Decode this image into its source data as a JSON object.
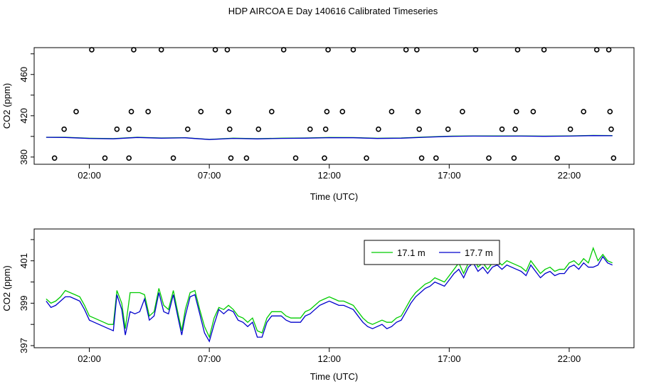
{
  "title": "HDP AIRCOA E  Day 140616  Calibrated Timeseries",
  "colors": {
    "green": "#00cc00",
    "blue": "#0000cc",
    "black": "#000000"
  },
  "chart_data": [
    {
      "type": "scatter",
      "title": "HDP AIRCOA E  Day 140616  Calibrated Timeseries",
      "xlabel": "Time (UTC)",
      "ylabel": "CO2 (ppm)",
      "xlim": [
        -0.3,
        24.7
      ],
      "ylim": [
        373,
        486
      ],
      "x_ticks": [
        2,
        7,
        12,
        17,
        22
      ],
      "x_tick_labels": [
        "02:00",
        "07:00",
        "12:00",
        "17:00",
        "22:00"
      ],
      "y_ticks": [
        380,
        420,
        460
      ],
      "y_tick_labels": [
        "380",
        "420",
        "460"
      ],
      "y_minor_ticks": [
        380,
        400,
        420,
        440,
        460,
        480
      ],
      "series": [
        {
          "marker": "circle",
          "color": "#000000",
          "points": [
            [
              0.55,
              379
            ],
            [
              0.95,
              407
            ],
            [
              1.45,
              424
            ],
            [
              2.1,
              484
            ],
            [
              2.65,
              379
            ],
            [
              3.15,
              407
            ],
            [
              3.65,
              379
            ],
            [
              3.65,
              407
            ],
            [
              3.75,
              424
            ],
            [
              3.85,
              484
            ],
            [
              4.45,
              424
            ],
            [
              5.0,
              484
            ],
            [
              5.5,
              379
            ],
            [
              6.1,
              407
            ],
            [
              6.65,
              424
            ],
            [
              7.25,
              484
            ],
            [
              7.75,
              484
            ],
            [
              7.8,
              424
            ],
            [
              7.85,
              407
            ],
            [
              7.9,
              379
            ],
            [
              8.55,
              379
            ],
            [
              9.05,
              407
            ],
            [
              9.6,
              424
            ],
            [
              10.1,
              484
            ],
            [
              10.6,
              379
            ],
            [
              11.2,
              407
            ],
            [
              11.8,
              379
            ],
            [
              11.85,
              407
            ],
            [
              11.9,
              424
            ],
            [
              11.95,
              484
            ],
            [
              12.55,
              424
            ],
            [
              13.0,
              484
            ],
            [
              13.55,
              379
            ],
            [
              14.05,
              407
            ],
            [
              14.6,
              424
            ],
            [
              15.2,
              484
            ],
            [
              15.65,
              484
            ],
            [
              15.7,
              424
            ],
            [
              15.75,
              407
            ],
            [
              15.85,
              379
            ],
            [
              16.45,
              379
            ],
            [
              16.95,
              407
            ],
            [
              17.55,
              424
            ],
            [
              18.1,
              484
            ],
            [
              18.65,
              379
            ],
            [
              19.2,
              407
            ],
            [
              19.7,
              379
            ],
            [
              19.75,
              407
            ],
            [
              19.8,
              424
            ],
            [
              19.85,
              484
            ],
            [
              20.5,
              424
            ],
            [
              20.95,
              484
            ],
            [
              21.5,
              379
            ],
            [
              22.05,
              407
            ],
            [
              22.6,
              424
            ],
            [
              23.15,
              484
            ],
            [
              23.65,
              484
            ],
            [
              23.7,
              424
            ],
            [
              23.75,
              407
            ],
            [
              23.85,
              379
            ]
          ]
        },
        {
          "name": "17.1 m",
          "color": "#00cc00",
          "x": [
            0.2,
            1,
            2,
            3,
            4,
            5,
            6,
            7,
            8,
            9,
            10,
            11,
            12,
            13,
            14,
            15,
            16,
            17,
            18,
            19,
            20,
            21,
            22,
            23,
            23.8
          ],
          "y": [
            399.2,
            399.2,
            398.2,
            397.9,
            399.2,
            398.5,
            398.8,
            397.1,
            398.3,
            397.8,
            398.3,
            398.5,
            399.0,
            398.9,
            398.2,
            398.5,
            399.4,
            400.2,
            400.5,
            400.4,
            400.5,
            400.3,
            400.5,
            401.0,
            400.8
          ]
        },
        {
          "name": "17.7 m",
          "color": "#0000cc",
          "x": [
            0.2,
            1,
            2,
            3,
            4,
            5,
            6,
            7,
            8,
            9,
            10,
            11,
            12,
            13,
            14,
            15,
            16,
            17,
            18,
            19,
            20,
            21,
            22,
            23,
            23.8
          ],
          "y": [
            399.1,
            399.0,
            398.0,
            397.7,
            399.0,
            398.3,
            398.6,
            397.0,
            398.1,
            397.6,
            398.1,
            398.3,
            398.8,
            398.7,
            398.0,
            398.3,
            399.2,
            400.0,
            400.3,
            400.2,
            400.3,
            400.1,
            400.3,
            400.8,
            400.6
          ]
        }
      ]
    },
    {
      "type": "line",
      "xlabel": "Time (UTC)",
      "ylabel": "CO2 (ppm)",
      "xlim": [
        -0.3,
        24.7
      ],
      "ylim": [
        396.9,
        402.5
      ],
      "x_ticks": [
        2,
        7,
        12,
        17,
        22
      ],
      "x_tick_labels": [
        "02:00",
        "07:00",
        "12:00",
        "17:00",
        "22:00"
      ],
      "y_ticks": [
        397,
        399,
        401
      ],
      "y_tick_labels": [
        "397",
        "399",
        "401"
      ],
      "y_minor_ticks": [
        397,
        398,
        399,
        400,
        401,
        402
      ],
      "legend": {
        "placement": "top-right",
        "entries": [
          "17.1 m",
          "17.7 m"
        ]
      },
      "series": [
        {
          "name": "17.1 m",
          "color": "#00cc00",
          "x": [
            0.2,
            0.4,
            0.6,
            0.8,
            1.0,
            1.2,
            1.4,
            1.6,
            1.8,
            2.0,
            2.2,
            2.4,
            2.6,
            2.8,
            3.0,
            3.15,
            3.35,
            3.5,
            3.7,
            3.9,
            4.1,
            4.3,
            4.5,
            4.7,
            4.9,
            5.1,
            5.3,
            5.5,
            5.7,
            5.85,
            6.0,
            6.2,
            6.4,
            6.6,
            6.8,
            7.0,
            7.2,
            7.4,
            7.6,
            7.8,
            8.0,
            8.2,
            8.4,
            8.6,
            8.8,
            9.0,
            9.2,
            9.4,
            9.6,
            9.8,
            10.0,
            10.2,
            10.4,
            10.6,
            10.8,
            11.0,
            11.2,
            11.4,
            11.6,
            11.8,
            12.0,
            12.2,
            12.4,
            12.6,
            12.8,
            13.0,
            13.2,
            13.4,
            13.6,
            13.8,
            14.0,
            14.2,
            14.4,
            14.6,
            14.8,
            15.0,
            15.2,
            15.4,
            15.6,
            15.8,
            16.0,
            16.2,
            16.4,
            16.6,
            16.8,
            17.0,
            17.2,
            17.4,
            17.6,
            17.8,
            18.0,
            18.2,
            18.4,
            18.6,
            18.8,
            19.0,
            19.2,
            19.4,
            19.6,
            19.8,
            20.0,
            20.2,
            20.4,
            20.6,
            20.8,
            21.0,
            21.2,
            21.4,
            21.6,
            21.8,
            22.0,
            22.2,
            22.4,
            22.6,
            22.8,
            23.0,
            23.2,
            23.4,
            23.6,
            23.8
          ],
          "y": [
            399.2,
            399.0,
            399.1,
            399.3,
            399.6,
            399.5,
            399.4,
            399.3,
            398.9,
            398.4,
            398.3,
            398.2,
            398.1,
            398.0,
            398.0,
            399.6,
            399.0,
            397.8,
            399.5,
            399.5,
            399.5,
            399.4,
            398.4,
            398.6,
            399.7,
            398.9,
            398.7,
            399.6,
            398.5,
            397.7,
            398.7,
            399.5,
            399.6,
            398.7,
            397.9,
            397.4,
            398.3,
            398.8,
            398.7,
            398.9,
            398.7,
            398.4,
            398.3,
            398.1,
            398.3,
            397.7,
            397.6,
            398.3,
            398.6,
            398.6,
            398.6,
            398.4,
            398.3,
            398.3,
            398.3,
            398.6,
            398.7,
            398.9,
            399.1,
            399.2,
            399.3,
            399.2,
            399.1,
            399.1,
            399.0,
            398.9,
            398.6,
            398.3,
            398.1,
            398.0,
            398.1,
            398.2,
            398.1,
            398.1,
            398.3,
            398.4,
            398.8,
            399.2,
            399.5,
            399.7,
            399.9,
            400.0,
            400.2,
            400.1,
            400.0,
            400.3,
            400.6,
            400.9,
            400.4,
            400.9,
            401.2,
            400.7,
            400.9,
            400.6,
            400.9,
            401.0,
            400.8,
            401.0,
            400.9,
            400.8,
            400.7,
            400.5,
            401.0,
            400.7,
            400.4,
            400.6,
            400.7,
            400.5,
            400.6,
            400.6,
            400.9,
            401.0,
            400.8,
            401.1,
            400.9,
            401.6,
            401.0,
            401.3,
            401.0,
            400.9
          ]
        },
        {
          "name": "17.7 m",
          "color": "#0000cc",
          "x": [
            0.2,
            0.4,
            0.6,
            0.8,
            1.0,
            1.2,
            1.4,
            1.6,
            1.8,
            2.0,
            2.2,
            2.4,
            2.6,
            2.8,
            3.0,
            3.15,
            3.35,
            3.5,
            3.7,
            3.9,
            4.1,
            4.3,
            4.5,
            4.7,
            4.9,
            5.1,
            5.3,
            5.5,
            5.7,
            5.85,
            6.0,
            6.2,
            6.4,
            6.6,
            6.8,
            7.0,
            7.2,
            7.4,
            7.6,
            7.8,
            8.0,
            8.2,
            8.4,
            8.6,
            8.8,
            9.0,
            9.2,
            9.4,
            9.6,
            9.8,
            10.0,
            10.2,
            10.4,
            10.6,
            10.8,
            11.0,
            11.2,
            11.4,
            11.6,
            11.8,
            12.0,
            12.2,
            12.4,
            12.6,
            12.8,
            13.0,
            13.2,
            13.4,
            13.6,
            13.8,
            14.0,
            14.2,
            14.4,
            14.6,
            14.8,
            15.0,
            15.2,
            15.4,
            15.6,
            15.8,
            16.0,
            16.2,
            16.4,
            16.6,
            16.8,
            17.0,
            17.2,
            17.4,
            17.6,
            17.8,
            18.0,
            18.2,
            18.4,
            18.6,
            18.8,
            19.0,
            19.2,
            19.4,
            19.6,
            19.8,
            20.0,
            20.2,
            20.4,
            20.6,
            20.8,
            21.0,
            21.2,
            21.4,
            21.6,
            21.8,
            22.0,
            22.2,
            22.4,
            22.6,
            22.8,
            23.0,
            23.2,
            23.4,
            23.6,
            23.8
          ],
          "y": [
            399.1,
            398.8,
            398.9,
            399.1,
            399.3,
            399.3,
            399.2,
            399.1,
            398.7,
            398.2,
            398.1,
            398.0,
            397.9,
            397.8,
            397.7,
            399.4,
            398.7,
            397.5,
            398.6,
            398.5,
            398.6,
            399.2,
            398.2,
            398.4,
            399.5,
            398.6,
            398.5,
            399.4,
            398.3,
            397.5,
            398.4,
            399.3,
            399.4,
            398.5,
            397.6,
            397.2,
            398.0,
            398.7,
            398.5,
            398.7,
            398.6,
            398.2,
            398.1,
            397.9,
            398.1,
            397.4,
            397.4,
            398.1,
            398.4,
            398.4,
            398.4,
            398.2,
            398.1,
            398.1,
            398.1,
            398.4,
            398.5,
            398.7,
            398.9,
            399.0,
            399.1,
            399.0,
            398.9,
            398.9,
            398.8,
            398.7,
            398.4,
            398.1,
            397.9,
            397.8,
            397.9,
            398.0,
            397.8,
            397.9,
            398.1,
            398.2,
            398.6,
            399.0,
            399.3,
            399.5,
            399.7,
            399.8,
            400.0,
            399.9,
            399.8,
            400.1,
            400.4,
            400.6,
            400.2,
            400.7,
            400.9,
            400.5,
            400.7,
            400.4,
            400.7,
            400.8,
            400.6,
            400.8,
            400.7,
            400.6,
            400.5,
            400.3,
            400.8,
            400.5,
            400.2,
            400.4,
            400.5,
            400.3,
            400.4,
            400.4,
            400.7,
            400.8,
            400.6,
            400.9,
            400.7,
            400.7,
            400.8,
            401.2,
            400.9,
            400.8
          ]
        }
      ]
    }
  ]
}
